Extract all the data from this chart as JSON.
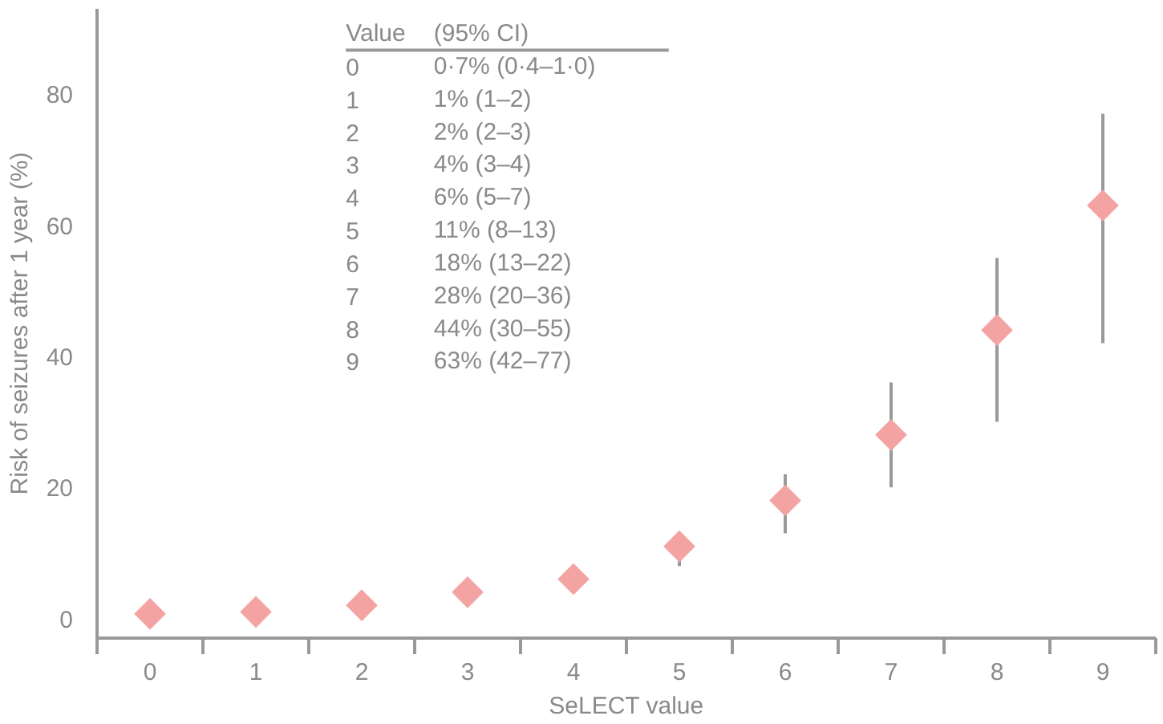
{
  "chart_data": {
    "type": "scatter",
    "xlabel": "SeLECT value",
    "ylabel": "Risk of seizures after 1 year (%)",
    "categories": [
      "0",
      "1",
      "2",
      "3",
      "4",
      "5",
      "6",
      "7",
      "8",
      "9"
    ],
    "values": [
      0.7,
      1,
      2,
      4,
      6,
      11,
      18,
      28,
      44,
      63
    ],
    "errors": [
      [
        0.4,
        1.0
      ],
      [
        1,
        2
      ],
      [
        2,
        3
      ],
      [
        3,
        4
      ],
      [
        5,
        7
      ],
      [
        8,
        13
      ],
      [
        13,
        22
      ],
      [
        20,
        36
      ],
      [
        30,
        55
      ],
      [
        42,
        77
      ]
    ],
    "annotations": [
      "Value\t(95% CI)",
      "0\t0·7% (0·4–1·0)",
      "1\t1% (1–2)",
      "2\t2% (2–3)",
      "3\t4% (3–4)",
      "4\t6% (5–7)",
      "5\t11% (8–13)",
      "6\t18% (13–22)",
      "7\t28% (20–36)",
      "8\t44% (30–55)",
      "9\t63% (42–77)"
    ],
    "color": "#f4a3a3",
    "marker": "diamond",
    "ylim": [
      -3,
      93
    ],
    "yticks": [
      0,
      20,
      40,
      60,
      80
    ],
    "grid": false
  }
}
